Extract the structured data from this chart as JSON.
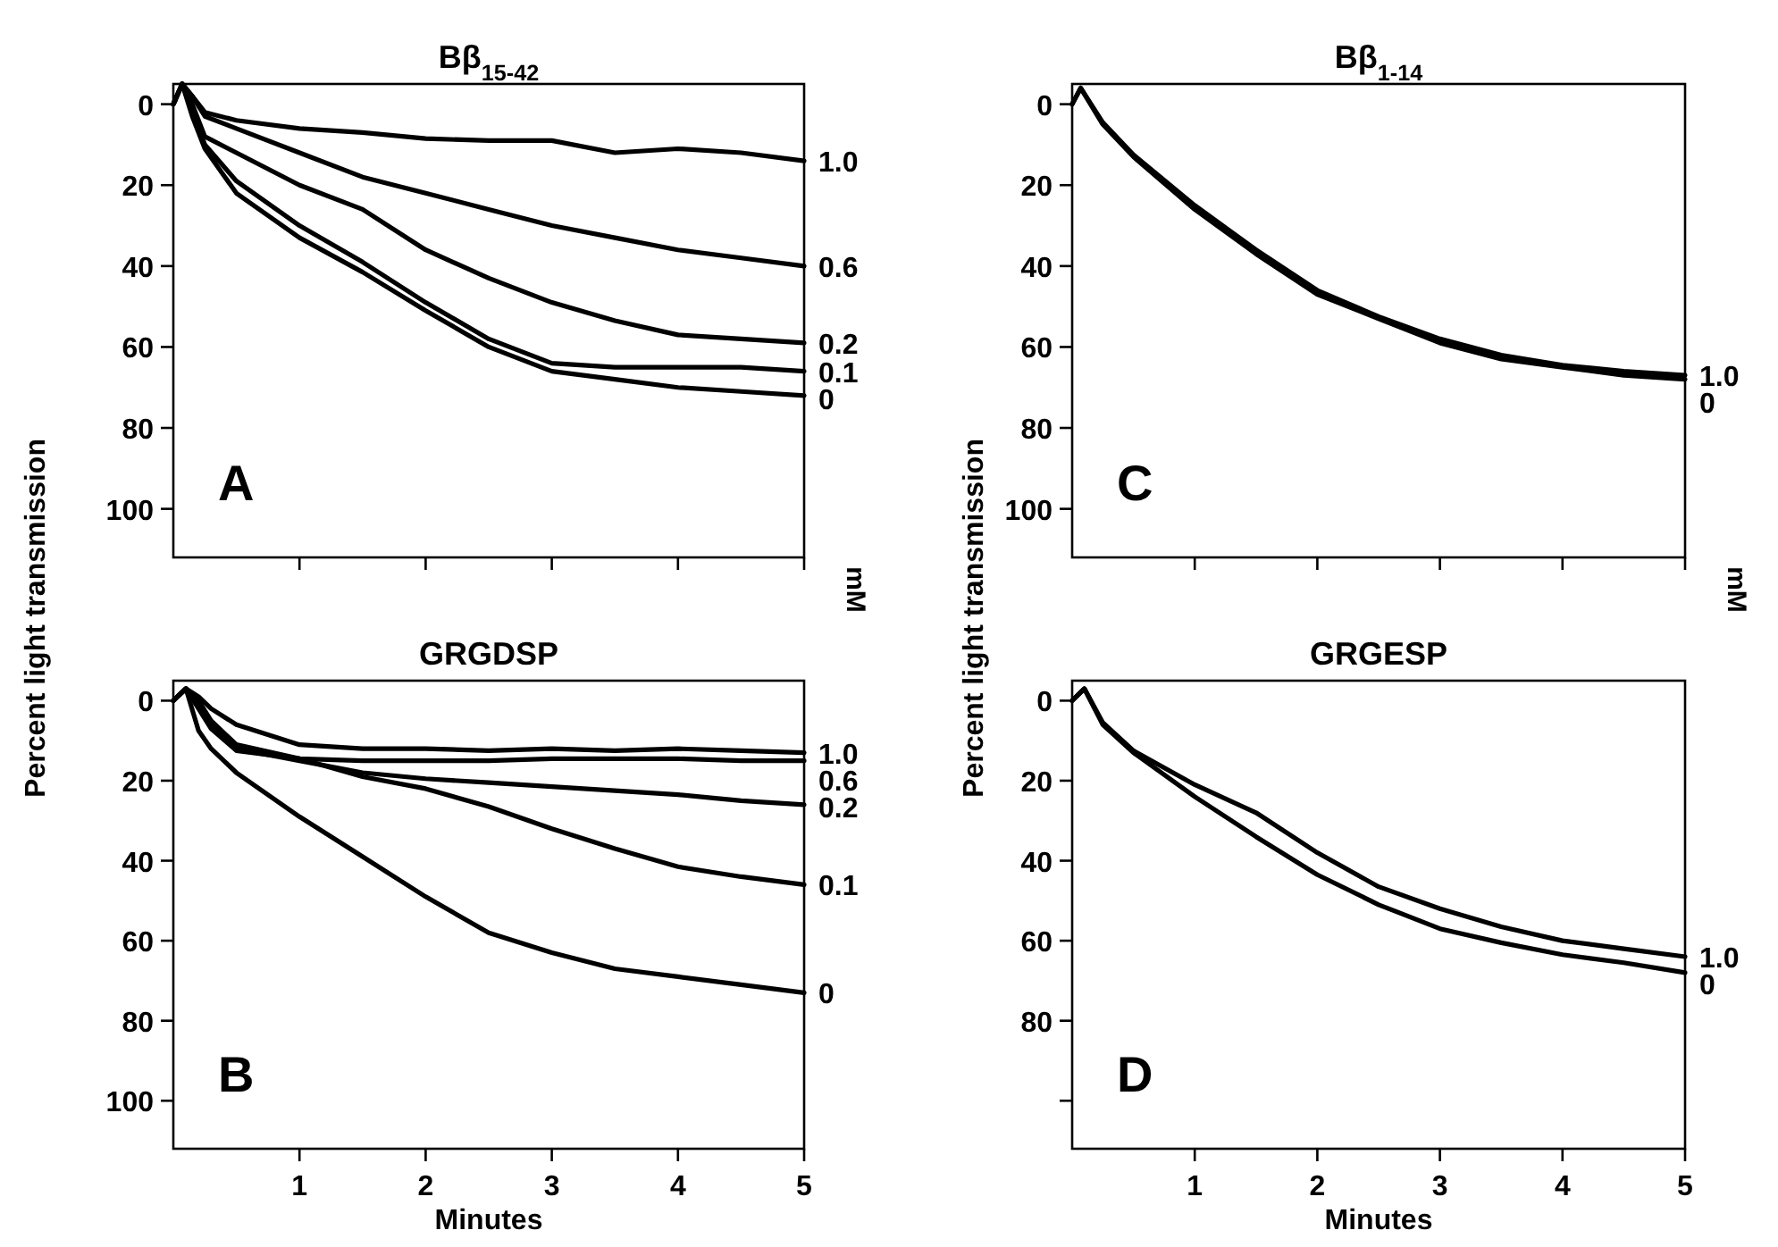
{
  "chart_data": [
    {
      "type": "line",
      "title": "Bβ$_{15-42}$",
      "ylabel": "Percent light transmission",
      "y2label": "mM",
      "annotations": [
        "A"
      ],
      "xlim": [
        0,
        5
      ],
      "xticks": [
        1,
        2,
        3,
        4,
        5
      ],
      "ylim": [
        112,
        -5
      ],
      "yticks": [
        0,
        20,
        40,
        60,
        80,
        100
      ],
      "tick_labels": "y",
      "x": [
        0,
        0.07,
        0.15,
        0.25,
        0.5,
        1,
        1.5,
        2,
        2.5,
        3,
        3.5,
        4,
        4.5,
        5
      ],
      "series": [
        {
          "name": "1.0",
          "color": "#000000",
          "values": [
            0,
            -5,
            -2,
            2,
            4,
            6,
            7,
            8.5,
            9,
            9,
            12,
            11,
            12,
            14
          ]
        },
        {
          "name": "0.6",
          "color": "#000000",
          "values": [
            0,
            -5,
            -2,
            3,
            6,
            12,
            18,
            22,
            26,
            30,
            33,
            36,
            38,
            40
          ]
        },
        {
          "name": "0.2",
          "color": "#000000",
          "values": [
            0,
            -5,
            0,
            8,
            12,
            20,
            26,
            36,
            43,
            49,
            53.5,
            57,
            58,
            59
          ]
        },
        {
          "name": "0.1",
          "color": "#000000",
          "values": [
            0,
            -5,
            2,
            10,
            19,
            30,
            39,
            49,
            58,
            64,
            65,
            65,
            65,
            66
          ]
        },
        {
          "name": "0",
          "color": "#000000",
          "values": [
            0,
            -5,
            3,
            11,
            22,
            33,
            41.5,
            51,
            60,
            66,
            68,
            70,
            71,
            72
          ]
        }
      ]
    },
    {
      "type": "line",
      "title": "Bβ$_{1-14}$",
      "ylabel": "Percent light transmission",
      "y2label": "mM",
      "annotations": [
        "C"
      ],
      "xlim": [
        0,
        5
      ],
      "xticks": [
        1,
        2,
        3,
        4,
        5
      ],
      "ylim": [
        112,
        -5
      ],
      "yticks": [
        0,
        20,
        40,
        60,
        80,
        100
      ],
      "tick_labels": "y",
      "x": [
        0,
        0.07,
        0.25,
        0.5,
        1,
        1.5,
        2,
        2.5,
        3,
        3.5,
        4,
        4.5,
        5
      ],
      "series": [
        {
          "name": "1.0",
          "color": "#000000",
          "values": [
            0,
            -4,
            4.5,
            12.5,
            25,
            36,
            46,
            52.5,
            58,
            62,
            64.5,
            66,
            67
          ]
        },
        {
          "name": "0",
          "color": "#000000",
          "values": [
            0,
            -4,
            5,
            13,
            26,
            37,
            47,
            53,
            59,
            63,
            65,
            67,
            68
          ]
        }
      ]
    },
    {
      "type": "line",
      "title": "GRGDSP",
      "xlabel": "Minutes",
      "annotations": [
        "B"
      ],
      "xlim": [
        0,
        5
      ],
      "xticks": [
        1,
        2,
        3,
        4,
        5
      ],
      "ylim": [
        112,
        -5
      ],
      "yticks": [
        0,
        20,
        40,
        60,
        80,
        100
      ],
      "x": [
        0,
        0.1,
        0.2,
        0.3,
        0.5,
        1,
        1.5,
        2,
        2.5,
        3,
        3.5,
        4,
        4.5,
        5
      ],
      "series": [
        {
          "name": "1.0",
          "color": "#000000",
          "values": [
            0,
            -3,
            -1,
            2,
            6,
            11,
            12,
            12,
            12.5,
            12,
            12.5,
            12,
            12.5,
            13
          ]
        },
        {
          "name": "0.6",
          "color": "#000000",
          "values": [
            0,
            -3,
            0,
            5,
            11,
            14.5,
            15,
            15,
            15,
            14.5,
            14.5,
            14.5,
            15,
            15
          ]
        },
        {
          "name": "0.2",
          "color": "#000000",
          "values": [
            0,
            -3,
            1,
            6,
            12,
            15,
            18,
            19.5,
            20.5,
            21.5,
            22.5,
            23.5,
            25,
            26
          ]
        },
        {
          "name": "0.1",
          "color": "#000000",
          "values": [
            0,
            -3,
            2,
            7,
            12.5,
            14.5,
            19,
            22,
            26.5,
            32,
            37,
            41.5,
            44,
            46
          ]
        },
        {
          "name": "0",
          "color": "#000000",
          "values": [
            0,
            -3,
            7.5,
            12,
            18,
            29,
            39,
            49,
            58,
            63,
            67,
            69,
            71,
            73
          ]
        }
      ]
    },
    {
      "type": "line",
      "title": "GRGESP",
      "xlabel": "Minutes",
      "annotations": [
        "D"
      ],
      "xlim": [
        0,
        5
      ],
      "xticks": [
        1,
        2,
        3,
        4,
        5
      ],
      "ylim": [
        112,
        -5
      ],
      "yticks": [
        0,
        20,
        40,
        60,
        80,
        {
          "value": 100,
          "label": null
        }
      ],
      "x": [
        0,
        0.1,
        0.25,
        0.5,
        1,
        1.5,
        2,
        2.5,
        3,
        3.5,
        4,
        4.5,
        5
      ],
      "series": [
        {
          "name": "1.0",
          "color": "#000000",
          "values": [
            0,
            -3,
            5.5,
            12.5,
            21,
            28,
            38,
            46.5,
            52,
            56.5,
            60,
            62,
            64
          ]
        },
        {
          "name": "0",
          "color": "#000000",
          "values": [
            0,
            -3,
            6,
            13,
            24,
            34,
            43.5,
            51,
            57,
            60.5,
            63.5,
            65.5,
            68
          ]
        }
      ]
    }
  ]
}
